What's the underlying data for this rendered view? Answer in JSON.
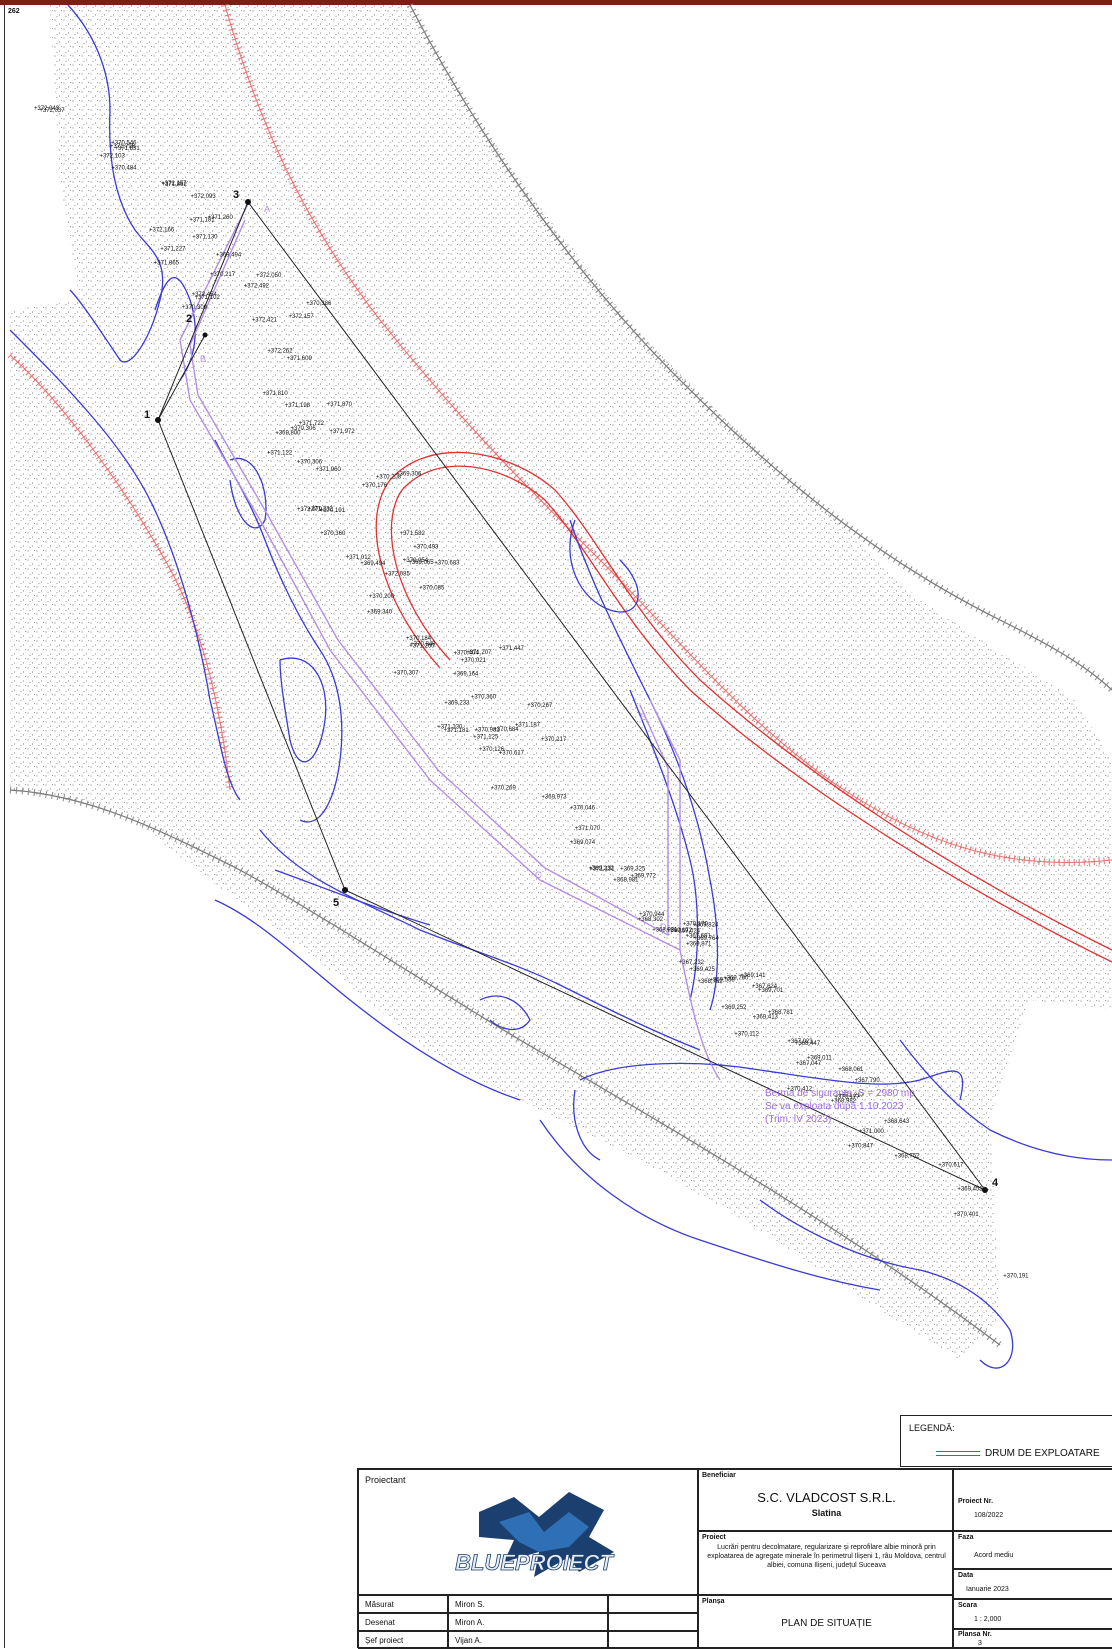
{
  "sheet_number": "262",
  "point_labels": [
    {
      "id": "1",
      "label": "1"
    },
    {
      "id": "2",
      "label": "2"
    },
    {
      "id": "3",
      "label": "3"
    },
    {
      "id": "4",
      "label": "4"
    },
    {
      "id": "5",
      "label": "5"
    }
  ],
  "area_letters": [
    "A",
    "B",
    "C",
    "D",
    "E"
  ],
  "elevations": [
    "370,546",
    "372,043",
    "371,831",
    "372,037",
    "372,157",
    "372,103",
    "372,093",
    "371,862",
    "371,260",
    "371,181",
    "371,796",
    "372,157",
    "370,484",
    "370,386",
    "371,130",
    "372,050",
    "372,166",
    "369,494",
    "372,492",
    "371,227",
    "370,217",
    "371,865",
    "371,102",
    "372,421",
    "371,609",
    "371,870",
    "372,454",
    "372,262",
    "370,309",
    "371,972",
    "369,306",
    "371,198",
    "370,306",
    "371,722",
    "371,810",
    "370,208",
    "369,800",
    "370,493",
    "370,683",
    "371,582",
    "370,176",
    "371,960",
    "370,306",
    "369,065",
    "370,191",
    "371,122",
    "370,054",
    "372,079",
    "372,085",
    "370,085",
    "370,360",
    "371,447",
    "371,232",
    "371,207",
    "370,021",
    "370,200",
    "369,494",
    "371,012",
    "369,164",
    "370,267",
    "370,404",
    "370,848",
    "369,340",
    "371,260",
    "370,217",
    "370,184",
    "371,187",
    "370,360",
    "370,684",
    "370,307",
    "370,617",
    "370,126",
    "370,046",
    "370,981",
    "371,130",
    "369,233",
    "371,125",
    "371,181",
    "369,973",
    "369,074",
    "371,070",
    "370,269",
    "369,325",
    "370,170",
    "371,131",
    "369,824",
    "368,981",
    "369,871",
    "370,944",
    "369,172",
    "369,772",
    "369,701",
    "369,764",
    "369,760",
    "369,024",
    "368,781",
    "369,232",
    "369,425",
    "369,141",
    "367,624",
    "368,981",
    "367,691",
    "368,061",
    "368,302",
    "367,232",
    "368,762",
    "369,252",
    "368,447",
    "367,790",
    "369,413",
    "368,643",
    "369,538",
    "369,011",
    "367,047",
    "367,023",
    "370,112",
    "368,982",
    "370,617",
    "370,177",
    "371,217",
    "370,412",
    "369,451",
    "368,752",
    "371,000",
    "370,401",
    "370,847",
    "370,191"
  ],
  "annotation": {
    "line1": "Berma de siguranta, S = 2980 mp",
    "line2": "Se va exploata după 1.10.2023",
    "line3": "(Trim. IV 2023)"
  },
  "legend": {
    "title": "LEGENDĂ:",
    "items": [
      {
        "label": "DRUM DE EXPLOATARE",
        "color": "#e03131"
      }
    ]
  },
  "title_block": {
    "projectant_label": "Proiectant",
    "logo_text": "BLUEPROIECT",
    "beneficiar_label": "Beneficiar",
    "beneficiar_name": "S.C. VLADCOST S.R.L.",
    "beneficiar_city": "Slatina",
    "project_nr_label": "Proiect Nr.",
    "project_nr": "108/2022",
    "faza_label": "Faza",
    "faza": "Acord mediu",
    "data_label": "Data",
    "data": "Ianuarie 2023",
    "scara_label": "Scara",
    "scara": "1 : 2,000",
    "plansa_label": "Plansa Nr.",
    "plansa": "3",
    "proiect_label": "Proiect",
    "proiect_text": "Lucrări pentru decolmatare, regularizare și reprofilare albie minoră prin exploatarea de agregate minerale în perimetrul Ilișeni 1, râu Moldova, centrul albiei, comuna Ilișeni, județul Suceava",
    "plansa_title_label": "Planșa",
    "plansa_title": "PLAN DE SITUAȚIE",
    "roles": [
      {
        "role": "Măsurat",
        "name": "Miron S."
      },
      {
        "role": "Desenat",
        "name": "Miron A."
      },
      {
        "role": "Șef proiect",
        "name": "Vijan A."
      }
    ]
  }
}
